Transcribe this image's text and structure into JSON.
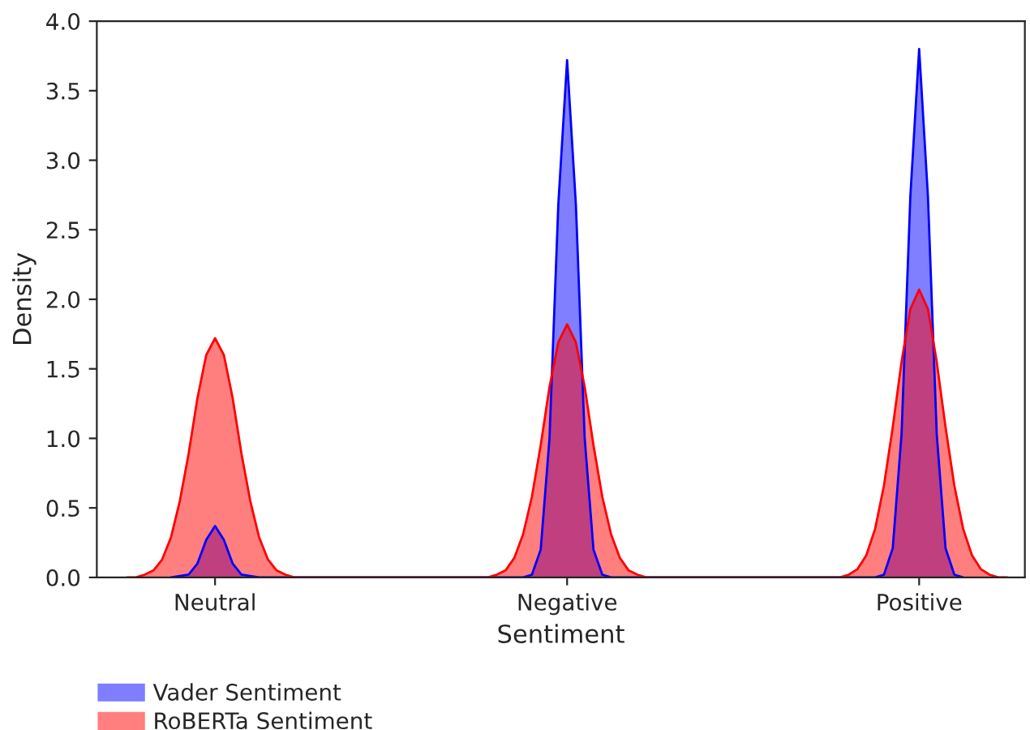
{
  "chart_data": {
    "type": "area",
    "xlabel": "Sentiment",
    "ylabel": "Density",
    "categories": [
      null,
      null,
      null,
      null,
      null,
      null,
      null,
      null,
      null,
      null,
      "Neutral",
      null,
      null,
      null,
      null,
      null,
      null,
      null,
      null,
      null,
      null,
      null,
      null,
      null,
      null,
      null,
      null,
      null,
      null,
      null,
      null,
      null,
      null,
      null,
      null,
      null,
      null,
      null,
      null,
      null,
      null,
      null,
      null,
      null,
      null,
      null,
      null,
      null,
      null,
      null,
      "Negative",
      null,
      null,
      null,
      null,
      null,
      null,
      null,
      null,
      null,
      null,
      null,
      null,
      null,
      null,
      null,
      null,
      null,
      null,
      null,
      null,
      null,
      null,
      null,
      null,
      null,
      null,
      null,
      null,
      null,
      null,
      null,
      null,
      null,
      null,
      null,
      null,
      null,
      null,
      null,
      "Positive",
      null,
      null,
      null,
      null,
      null,
      null,
      null,
      null,
      null,
      null
    ],
    "ylim": [
      0,
      4.0
    ],
    "yticks": [
      {
        "value": 0,
        "label": "0.0"
      },
      {
        "value": 0.5,
        "label": "0.5"
      },
      {
        "value": 1,
        "label": "1.0"
      },
      {
        "value": 1.5,
        "label": "1.5"
      },
      {
        "value": 2,
        "label": "2.0"
      },
      {
        "value": 2.5,
        "label": "2.5"
      },
      {
        "value": 3,
        "label": "3.0"
      },
      {
        "value": 3.5,
        "label": "3.5"
      },
      {
        "value": 4,
        "label": "4.0"
      }
    ],
    "legend": "bottom left",
    "series": [
      {
        "name": "Vader Sentiment",
        "color": "#0000ff",
        "values": [
          null,
          null,
          null,
          null,
          null,
          0,
          0.01,
          0.02,
          0.1,
          0.27,
          0.37,
          0.27,
          0.1,
          0.02,
          0.01,
          0,
          0,
          0,
          0,
          0,
          0,
          0,
          0,
          0,
          0,
          0,
          0,
          0,
          0,
          0,
          0,
          0,
          0,
          0,
          0,
          0,
          0,
          0,
          0,
          0,
          0,
          0,
          0,
          0,
          0,
          0,
          0.02,
          0.2,
          1.0,
          2.68,
          3.72,
          2.68,
          1.0,
          0.2,
          0.02,
          0,
          0,
          0,
          0,
          0,
          0,
          0,
          0,
          0,
          0,
          0,
          0,
          0,
          0,
          0,
          0,
          0,
          0,
          0,
          0,
          0,
          0,
          0,
          0,
          0,
          0,
          0,
          0,
          0,
          0,
          0,
          0.02,
          0.21,
          1.03,
          2.74,
          3.8,
          2.74,
          1.03,
          0.21,
          0.02,
          0,
          null,
          null,
          null,
          null,
          null
        ]
      },
      {
        "name": "RoBERTa Sentiment",
        "color": "#ff0000",
        "values": [
          0,
          0,
          0.02,
          0.05,
          0.13,
          0.29,
          0.55,
          0.89,
          1.29,
          1.6,
          1.72,
          1.6,
          1.29,
          0.89,
          0.55,
          0.29,
          0.13,
          0.05,
          0.02,
          0,
          0,
          0,
          0,
          0,
          0,
          0,
          0,
          0,
          0,
          0,
          0,
          0,
          0,
          0,
          0,
          0,
          0,
          0,
          0,
          0,
          0,
          0,
          0.02,
          0.05,
          0.14,
          0.31,
          0.58,
          0.95,
          1.37,
          1.69,
          1.82,
          1.69,
          1.37,
          0.95,
          0.58,
          0.31,
          0.14,
          0.05,
          0.02,
          0,
          0,
          0,
          0,
          0,
          0,
          0,
          0,
          0,
          0,
          0,
          0,
          0,
          0,
          0,
          0,
          0,
          0,
          0,
          0,
          0,
          0,
          0,
          0.02,
          0.06,
          0.16,
          0.35,
          0.66,
          1.08,
          1.55,
          1.93,
          2.07,
          1.93,
          1.55,
          1.08,
          0.66,
          0.35,
          0.16,
          0.06,
          0.02,
          0,
          0
        ]
      }
    ]
  }
}
